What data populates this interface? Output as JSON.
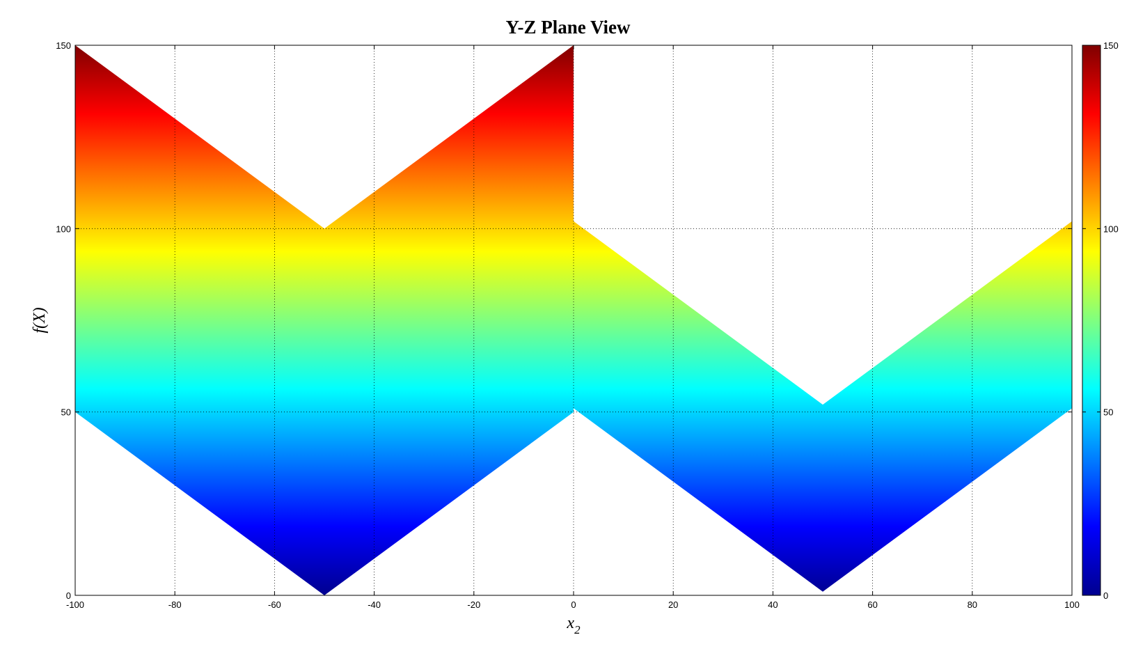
{
  "chart_data": {
    "type": "area",
    "title": "Y-Z Plane View",
    "xlabel": "x",
    "xlabel_subscript": "2",
    "ylabel": "f(X)",
    "xlim": [
      -100,
      100
    ],
    "ylim": [
      0,
      150
    ],
    "grid": true,
    "xticks": [
      -100,
      -80,
      -60,
      -40,
      -20,
      0,
      20,
      40,
      60,
      80,
      100
    ],
    "yticks": [
      0,
      50,
      100,
      150
    ],
    "colormap": "jet",
    "colorbar": {
      "range": [
        0,
        150
      ],
      "ticks": [
        0,
        50,
        100,
        150
      ],
      "position": "right"
    },
    "series": [
      {
        "upper": {
          "x": [
            -100,
            -50,
            0
          ],
          "y": [
            150,
            100,
            150
          ]
        },
        "lower": {
          "x": [
            -100,
            -50,
            0
          ],
          "y": [
            50,
            0,
            50
          ]
        }
      },
      {
        "upper": {
          "x": [
            0,
            50,
            100
          ],
          "y": [
            102,
            52,
            102
          ]
        },
        "lower": {
          "x": [
            0,
            50,
            100
          ],
          "y": [
            51,
            1,
            51
          ]
        }
      }
    ]
  }
}
